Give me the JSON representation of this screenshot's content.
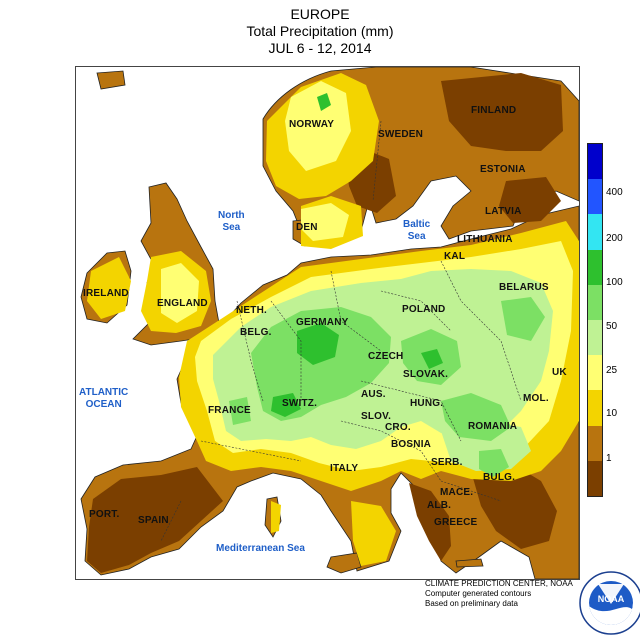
{
  "title": {
    "region": "EUROPE",
    "variable": "Total Precipitation (mm)",
    "period": "JUL 6 - 12, 2014"
  },
  "countries": {
    "finland": "FINLAND",
    "norway": "NORWAY",
    "sweden": "SWEDEN",
    "estonia": "ESTONIA",
    "latvia": "LATVIA",
    "lithuania": "LITHUANIA",
    "kal": "KAL",
    "den": "DEN",
    "belarus": "BELARUS",
    "ireland": "IRELAND",
    "england": "ENGLAND",
    "neth": "NETH.",
    "belg": "BELG.",
    "germany": "GERMANY",
    "poland": "POLAND",
    "czech": "CZECH",
    "slovak": "SLOVAK.",
    "ukr": "UK",
    "aus": "AUS.",
    "hung": "HUNG.",
    "mol": "MOL.",
    "france": "FRANCE",
    "switz": "SWITZ.",
    "slov": "SLOV.",
    "cro": "CRO.",
    "romania": "ROMANIA",
    "bosnia": "BOSNIA",
    "serb": "SERB.",
    "bulg": "BULG.",
    "italy": "ITALY",
    "mace": "MACE.",
    "alb": "ALB.",
    "greece": "GREECE",
    "port": "PORT.",
    "spain": "SPAIN"
  },
  "seas": {
    "north_sea": "North\nSea",
    "baltic_sea": "Baltic\nSea",
    "atlantic": "ATLANTIC\nOCEAN",
    "mediterranean": "Mediterranean Sea"
  },
  "legend": {
    "unit": "mm",
    "classes": [
      {
        "lower": 0,
        "upper": 1,
        "color": "#7b3f00"
      },
      {
        "lower": 1,
        "upper": 10,
        "color": "#b8740f"
      },
      {
        "lower": 10,
        "upper": 25,
        "color": "#f3d400"
      },
      {
        "lower": 25,
        "upper": 50,
        "color": "#ffff73"
      },
      {
        "lower": 50,
        "upper": 100,
        "color": "#bff294"
      },
      {
        "lower": 100,
        "upper": 200,
        "color": "#7ce064"
      },
      {
        "lower": 200,
        "upper": 400,
        "color": "#2ec02e"
      },
      {
        "lower": 400,
        "upper": null,
        "color": "#33e5f2"
      },
      {
        "lower": null,
        "upper": null,
        "color": "#2255ff"
      },
      {
        "lower": null,
        "upper": null,
        "color": "#0000cc"
      }
    ],
    "tick_labels": [
      "1",
      "10",
      "25",
      "50",
      "100",
      "200",
      "400"
    ]
  },
  "credits": {
    "line1": "CLIMATE PREDICTION CENTER, NOAA",
    "line2": "Computer generated contours",
    "line3": "Based on preliminary data"
  },
  "logo": {
    "text": "NOAA",
    "ring_text": "NATIONAL OCEANIC AND ATMOSPHERIC ADMINISTRATION · U.S. DEPARTMENT OF COMMERCE"
  },
  "colors": {
    "water": "#ffffff",
    "outline": "#222222",
    "sea_label": "#1f5fc8"
  }
}
